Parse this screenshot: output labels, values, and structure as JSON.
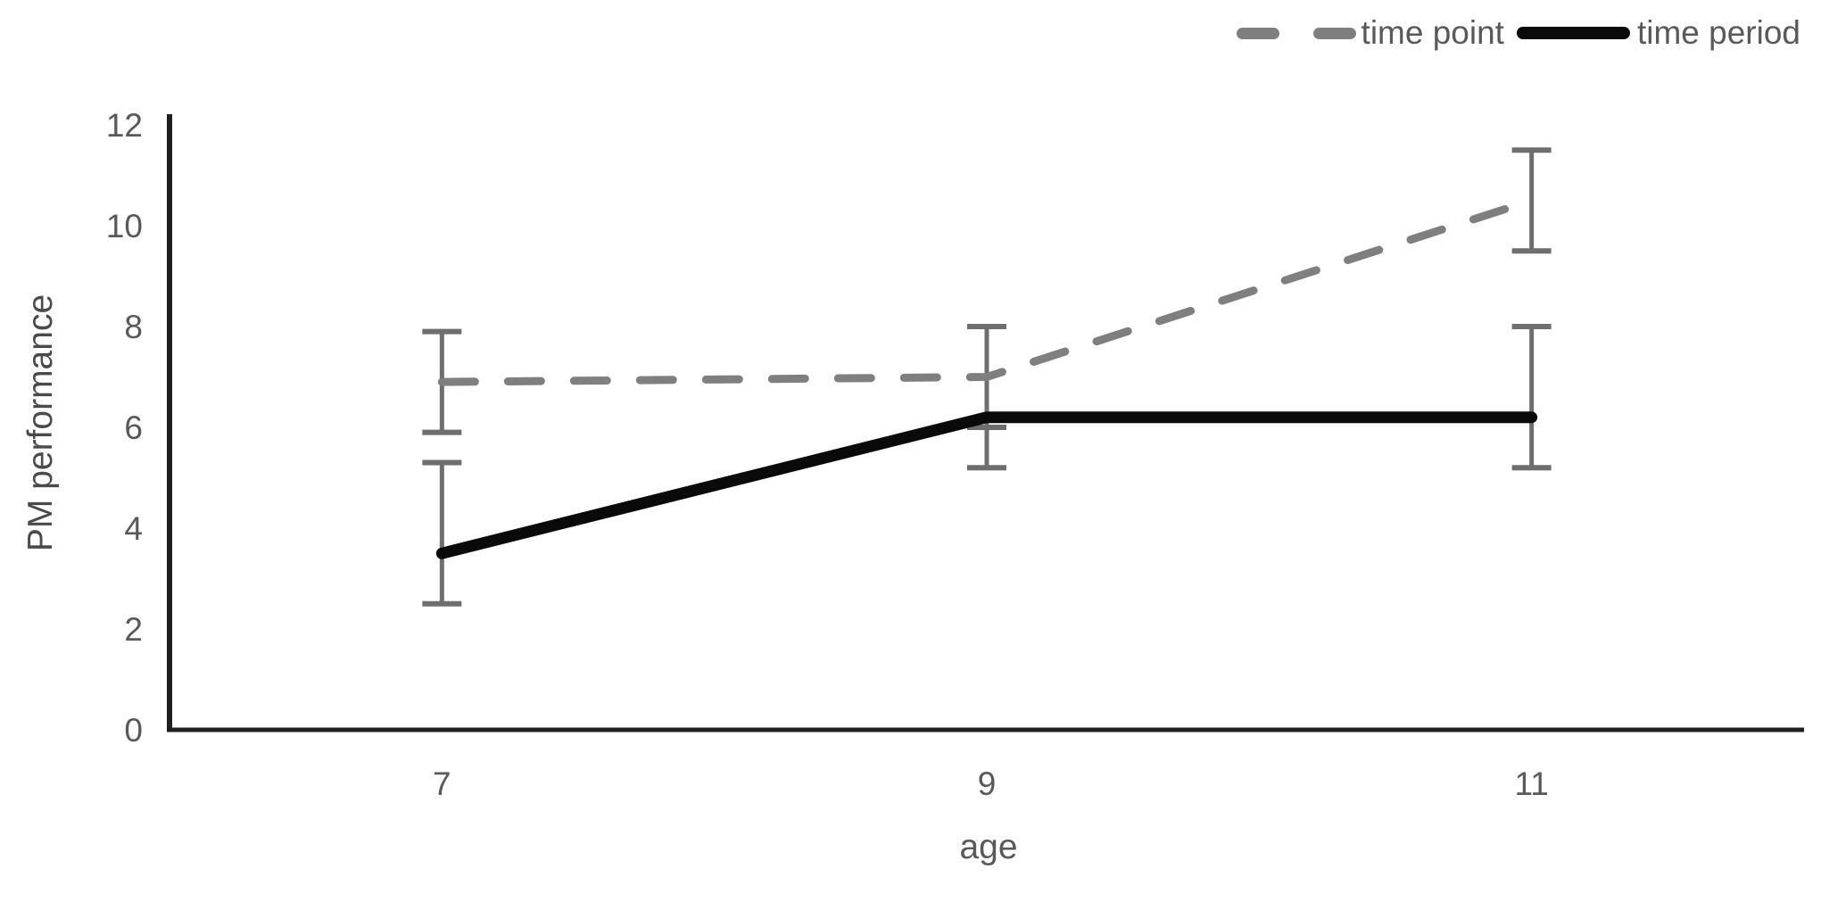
{
  "figure": {
    "background": "#ffffff"
  },
  "chart_data": {
    "type": "line",
    "title": "",
    "xlabel": "age",
    "ylabel": "PM performance",
    "categories": [
      "7",
      "9",
      "11"
    ],
    "x_values": [
      7,
      9,
      11
    ],
    "ylim": [
      0,
      12
    ],
    "y_ticks": [
      0,
      2,
      4,
      6,
      8,
      10,
      12
    ],
    "grid": false,
    "legend_position": "top-right",
    "series": [
      {
        "name": "time point",
        "style": "dashed",
        "color": "#7f7f7f",
        "values": [
          6.9,
          7.0,
          10.5
        ],
        "error_lower": [
          5.9,
          6.0,
          9.5
        ],
        "error_upper": [
          7.9,
          8.0,
          11.5
        ]
      },
      {
        "name": "time period",
        "style": "solid",
        "color": "#0a0a0a",
        "values": [
          3.5,
          6.2,
          6.2
        ],
        "error_lower": [
          2.5,
          5.2,
          5.2
        ],
        "error_upper": [
          5.3,
          8.0,
          8.0
        ]
      }
    ],
    "error_bar_color": "#6e6e6e",
    "axis_color": "#1f1f1f",
    "tick_label_color": "#595959"
  }
}
